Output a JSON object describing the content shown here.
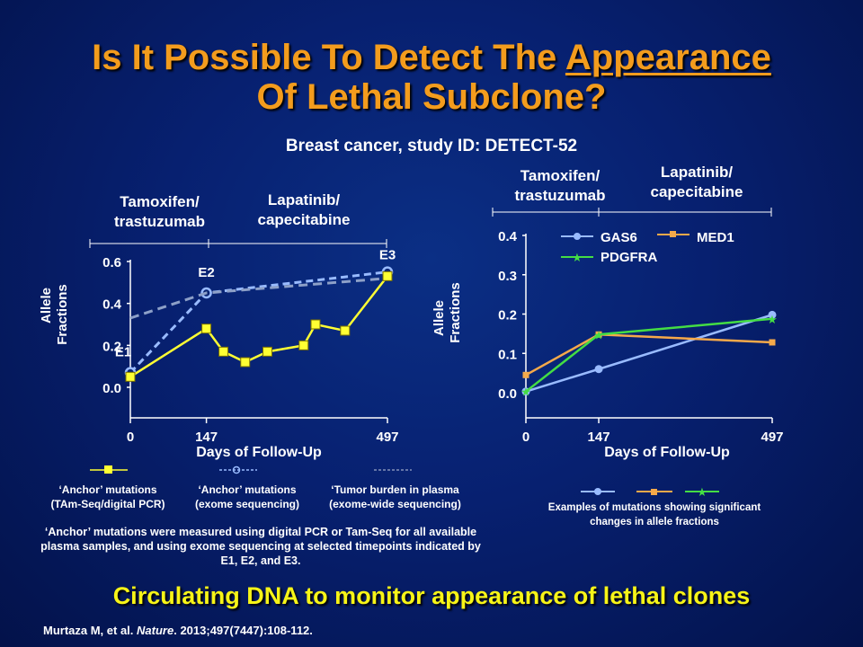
{
  "title": {
    "before": "Is It Possible To Detect The ",
    "underlined": "Appearance",
    "line2": "Of Lethal Subclone?"
  },
  "subtitle": "Breast cancer, study ID: DETECT-52",
  "colors": {
    "title": "#f39c1d",
    "footer": "#f7f417",
    "yellow": "#ffff33",
    "dashed_light": "#99bbff",
    "dashed_dark": "#8da0c8",
    "gas6": "#99bbff",
    "med1": "#f5a94a",
    "pdgfra": "#44dd44"
  },
  "chart_data": [
    {
      "type": "line",
      "phase_labels": [
        {
          "line1": "Tamoxifen/",
          "line2": "trastuzumab"
        },
        {
          "line1": "Lapatinib/",
          "line2": "capecitabine"
        }
      ],
      "ylabel": {
        "line1": "Allele",
        "line2": "Fractions"
      },
      "xlabel": "Days of Follow-Up",
      "xlim": [
        0,
        497
      ],
      "ylim": [
        0,
        0.6
      ],
      "yticks": [
        "0.0",
        "0.2",
        "0.4",
        "0.6"
      ],
      "xticks": [
        "0",
        "147",
        "497"
      ],
      "annotations": [
        {
          "text": "E1",
          "x": 0,
          "y": 0.07
        },
        {
          "text": "E2",
          "x": 147,
          "y": 0.45
        },
        {
          "text": "E3",
          "x": 497,
          "y": 0.55
        }
      ],
      "series": [
        {
          "key": "anchor_pcr",
          "style": "solid-square",
          "points": [
            [
              0,
              0.05
            ],
            [
              147,
              0.28
            ],
            [
              180,
              0.17
            ],
            [
              222,
              0.12
            ],
            [
              265,
              0.17
            ],
            [
              335,
              0.2
            ],
            [
              358,
              0.3
            ],
            [
              415,
              0.27
            ],
            [
              497,
              0.53
            ]
          ]
        },
        {
          "key": "anchor_exome",
          "style": "dashed-circle",
          "points": [
            [
              0,
              0.07
            ],
            [
              147,
              0.45
            ],
            [
              497,
              0.55
            ]
          ]
        },
        {
          "key": "tumor_burden",
          "style": "dashed",
          "points": [
            [
              0,
              0.33
            ],
            [
              147,
              0.45
            ],
            [
              497,
              0.52
            ]
          ]
        }
      ],
      "legend": [
        {
          "key": "anchor_pcr",
          "line1": "‘Anchor’ mutations",
          "line2": "(TAm-Seq/digital PCR)"
        },
        {
          "key": "anchor_exome",
          "line1": "‘Anchor’ mutations",
          "line2": "(exome sequencing)"
        },
        {
          "key": "tumor_burden",
          "line1": "‘Tumor burden in plasma",
          "line2": "(exome-wide sequencing)"
        }
      ],
      "note": "‘Anchor’ mutations were measured using digital PCR or Tam-Seq for all available plasma samples, and using exome sequencing at selected timepoints indicated by E1, E2, and E3."
    },
    {
      "type": "line",
      "phase_labels": [
        {
          "line1": "Tamoxifen/",
          "line2": "trastuzumab"
        },
        {
          "line1": "Lapatinib/",
          "line2": "capecitabine"
        }
      ],
      "ylabel": {
        "line1": "Allele",
        "line2": "Fractions"
      },
      "xlabel": "Days of Follow-Up",
      "xlim": [
        0,
        497
      ],
      "ylim": [
        0,
        0.4
      ],
      "yticks": [
        "0.0",
        "0.1",
        "0.2",
        "0.3",
        "0.4"
      ],
      "xticks": [
        "0",
        "147",
        "497"
      ],
      "series": [
        {
          "name": "GAS6",
          "marker": "circle",
          "points": [
            [
              0,
              0.003
            ],
            [
              147,
              0.06
            ],
            [
              497,
              0.198
            ]
          ]
        },
        {
          "name": "MED1",
          "marker": "square",
          "points": [
            [
              0,
              0.045
            ],
            [
              147,
              0.148
            ],
            [
              497,
              0.128
            ]
          ]
        },
        {
          "name": "PDGFRA",
          "marker": "star",
          "points": [
            [
              0,
              0.003
            ],
            [
              147,
              0.148
            ],
            [
              497,
              0.188
            ]
          ]
        }
      ],
      "legend_caption": {
        "line1": "Examples of mutations showing significant",
        "line2": "changes in allele fractions"
      }
    }
  ],
  "footer": "Circulating DNA to monitor appearance of lethal clones",
  "citation": {
    "authors": "Murtaza M, et al. ",
    "journal": "Nature",
    "details": ". 2013;497(7447):108-112."
  }
}
